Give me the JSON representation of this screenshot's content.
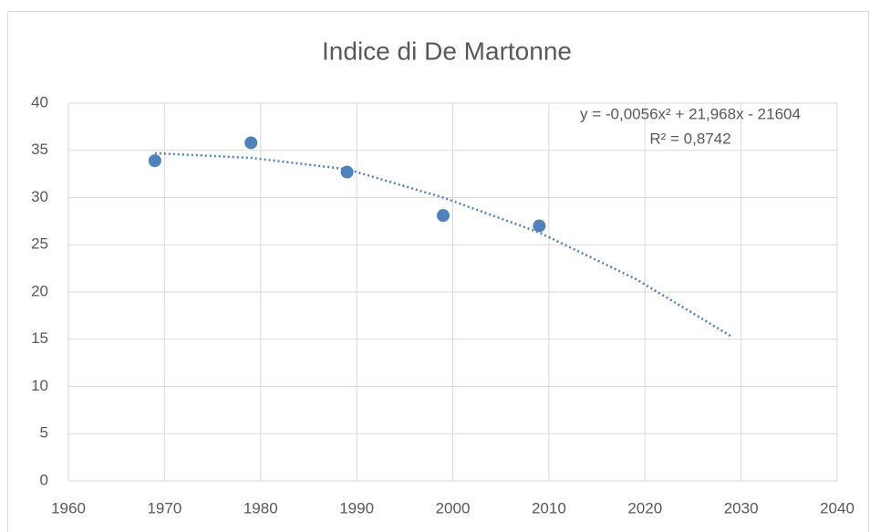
{
  "chart_data": {
    "type": "scatter",
    "title": "Indice di De Martonne",
    "series": [
      {
        "color": "#4f81bd",
        "x": [
          1969,
          1979,
          1989,
          1999,
          2009
        ],
        "values": [
          33.9,
          35.8,
          32.7,
          28.1,
          27.0
        ]
      }
    ],
    "trendline": {
      "color": "#4f81bd",
      "x": [
        1969,
        1979,
        1989,
        1999,
        2009,
        2019,
        2029
      ],
      "values": [
        34.7,
        34.2,
        33.0,
        30.0,
        26.3,
        21.4,
        15.3
      ]
    },
    "annotations": [
      "y = -0,0056x² + 21,968x - 21604",
      "R² = 0,8742"
    ],
    "xlim": [
      1960,
      2040
    ],
    "xticks": [
      1960,
      1970,
      1980,
      1990,
      2000,
      2010,
      2020,
      2030,
      2040
    ],
    "ylim": [
      0,
      40
    ],
    "yticks": [
      0,
      5,
      10,
      15,
      20,
      25,
      30,
      35,
      40
    ],
    "grid": true
  }
}
